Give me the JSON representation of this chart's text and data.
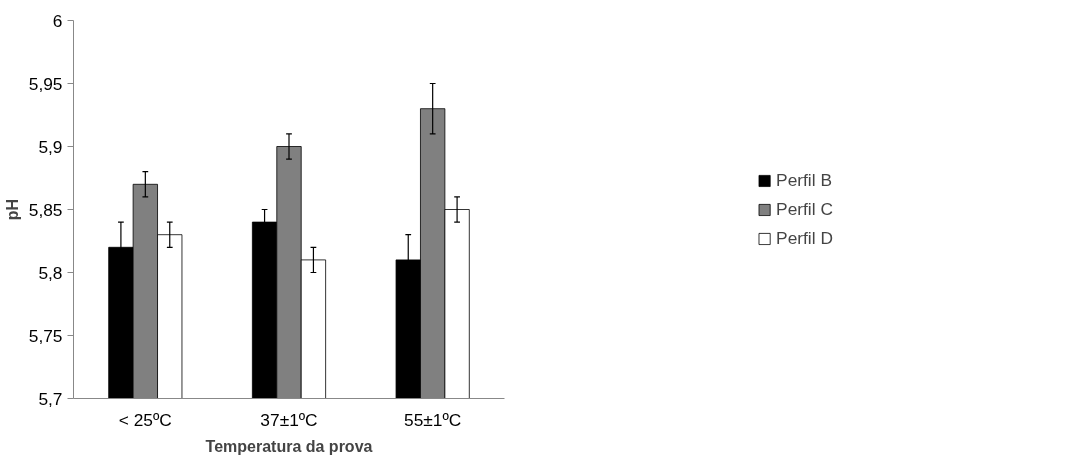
{
  "chart_data": {
    "type": "bar",
    "xlabel": "Temperatura da prova",
    "ylabel": "pH",
    "categories": [
      "< 25ºC",
      "37±1ºC",
      "55±1ºC"
    ],
    "series": [
      {
        "name": "Perfil B",
        "color": "#000000",
        "values": [
          5.82,
          5.84,
          5.81
        ],
        "errors": [
          0.02,
          0.01,
          0.02
        ]
      },
      {
        "name": "Perfil C",
        "color": "#808080",
        "values": [
          5.87,
          5.9,
          5.93
        ],
        "errors": [
          0.01,
          0.01,
          0.02
        ]
      },
      {
        "name": "Perfil D",
        "color": "#ffffff",
        "values": [
          5.83,
          5.81,
          5.85
        ],
        "errors": [
          0.01,
          0.01,
          0.01
        ]
      }
    ],
    "ylim": [
      5.7,
      6
    ],
    "yticks": [
      {
        "value": 5.7,
        "label": "5,7"
      },
      {
        "value": 5.75,
        "label": "5,75"
      },
      {
        "value": 5.8,
        "label": "5,8"
      },
      {
        "value": 5.85,
        "label": "5,85"
      },
      {
        "value": 5.9,
        "label": "5,9"
      },
      {
        "value": 5.95,
        "label": "5,95"
      },
      {
        "value": 6,
        "label": "6"
      }
    ],
    "grid": false,
    "legend": "right"
  }
}
